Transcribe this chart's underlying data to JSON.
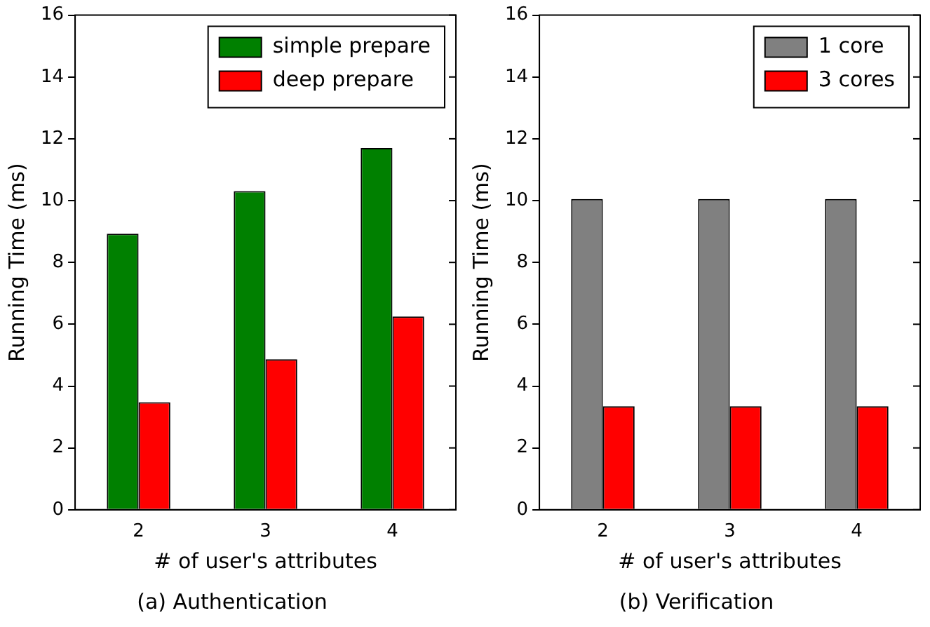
{
  "chart_data": [
    {
      "type": "bar",
      "categories": [
        "2",
        "3",
        "4"
      ],
      "xlabel": "# of user's attributes",
      "ylabel": "Running Time (ms)",
      "ylim": [
        0,
        16
      ],
      "yticks": [
        0,
        2,
        4,
        6,
        8,
        10,
        12,
        14,
        16
      ],
      "legend": "top right",
      "annotations": [
        "(a) Authentication"
      ],
      "series": [
        {
          "name": "simple prepare",
          "color": "#008000",
          "values": [
            8.93,
            10.31,
            11.7
          ]
        },
        {
          "name": "deep prepare",
          "color": "#ff0000",
          "values": [
            3.48,
            4.87,
            6.25
          ]
        }
      ]
    },
    {
      "type": "bar",
      "categories": [
        "2",
        "3",
        "4"
      ],
      "xlabel": "# of user's attributes",
      "ylabel": "Running Time (ms)",
      "ylim": [
        0,
        16
      ],
      "yticks": [
        0,
        2,
        4,
        6,
        8,
        10,
        12,
        14,
        16
      ],
      "legend": "top right",
      "annotations": [
        "(b) Verification"
      ],
      "series": [
        {
          "name": "1 core",
          "color": "#808080",
          "values": [
            10.05,
            10.05,
            10.05
          ]
        },
        {
          "name": "3 cores",
          "color": "#ff0000",
          "values": [
            3.35,
            3.35,
            3.35
          ]
        }
      ]
    }
  ]
}
